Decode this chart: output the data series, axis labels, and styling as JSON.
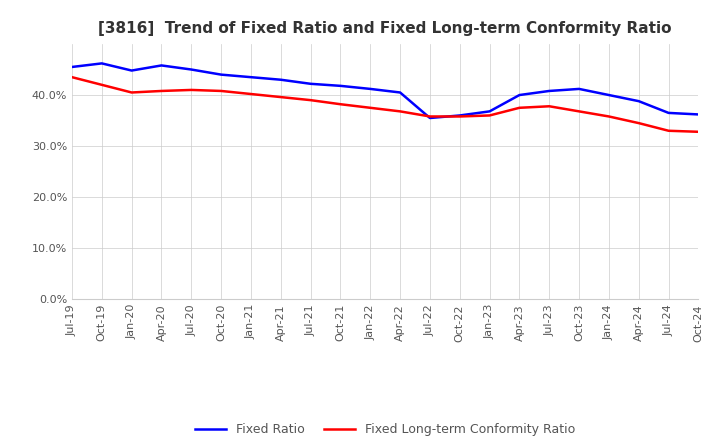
{
  "title": "[3816]  Trend of Fixed Ratio and Fixed Long-term Conformity Ratio",
  "fixed_ratio": {
    "label": "Fixed Ratio",
    "color": "#0000FF",
    "dates": [
      "Jul-19",
      "Oct-19",
      "Jan-20",
      "Apr-20",
      "Jul-20",
      "Oct-20",
      "Jan-21",
      "Apr-21",
      "Jul-21",
      "Oct-21",
      "Jan-22",
      "Apr-22",
      "Jul-22",
      "Oct-22",
      "Jan-23",
      "Apr-23",
      "Jul-23",
      "Oct-23",
      "Jan-24",
      "Apr-24",
      "Jul-24",
      "Oct-24"
    ],
    "values": [
      0.455,
      0.462,
      0.448,
      0.458,
      0.45,
      0.44,
      0.435,
      0.43,
      0.422,
      0.418,
      0.412,
      0.405,
      0.355,
      0.36,
      0.368,
      0.4,
      0.408,
      0.412,
      0.4,
      0.388,
      0.365,
      0.362
    ]
  },
  "fixed_lt_ratio": {
    "label": "Fixed Long-term Conformity Ratio",
    "color": "#FF0000",
    "dates": [
      "Jul-19",
      "Oct-19",
      "Jan-20",
      "Apr-20",
      "Jul-20",
      "Oct-20",
      "Jan-21",
      "Apr-21",
      "Jul-21",
      "Oct-21",
      "Jan-22",
      "Apr-22",
      "Jul-22",
      "Oct-22",
      "Jan-23",
      "Apr-23",
      "Jul-23",
      "Oct-23",
      "Jan-24",
      "Apr-24",
      "Jul-24",
      "Oct-24"
    ],
    "values": [
      0.435,
      0.42,
      0.405,
      0.408,
      0.41,
      0.408,
      0.402,
      0.396,
      0.39,
      0.382,
      0.375,
      0.368,
      0.358,
      0.358,
      0.36,
      0.375,
      0.378,
      0.368,
      0.358,
      0.345,
      0.33,
      0.328
    ]
  },
  "ylim": [
    0.0,
    0.5
  ],
  "yticks": [
    0.0,
    0.1,
    0.2,
    0.3,
    0.4
  ],
  "background_color": "#FFFFFF",
  "grid_color": "#CCCCCC",
  "title_fontsize": 11,
  "tick_fontsize": 8,
  "legend_fontsize": 9
}
